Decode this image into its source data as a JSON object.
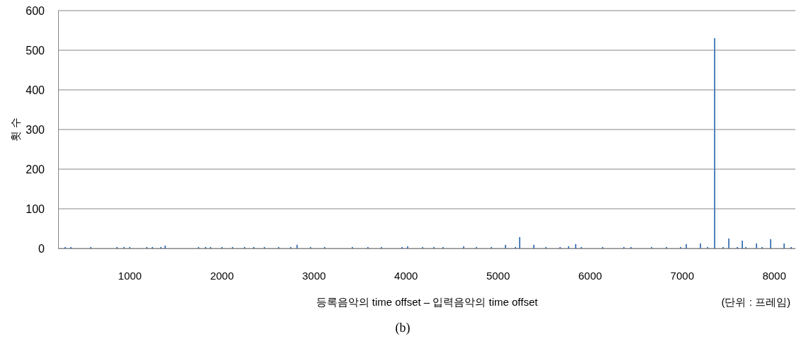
{
  "chart_data": {
    "type": "bar",
    "xlabel": "등록음악의 time offset – 입력음악의 time offset",
    "ylabel": "횟 수",
    "annotations": [
      "(단위 : 프레임)",
      "(b)"
    ],
    "x": [
      299,
      361,
      576,
      861,
      938,
      1000,
      1185,
      1246,
      1339,
      1385,
      1747,
      1824,
      1878,
      2001,
      2117,
      2248,
      2348,
      2463,
      2617,
      2748,
      2817,
      2964,
      3118,
      3418,
      3587,
      3734,
      3957,
      4019,
      4180,
      4303,
      4404,
      4627,
      4766,
      4927,
      5081,
      5189,
      5235,
      5389,
      5520,
      5674,
      5767,
      5844,
      5905,
      6136,
      6367,
      6444,
      6668,
      6830,
      6983,
      7045,
      7199,
      7276,
      7351,
      7445,
      7507,
      7599,
      7653,
      7692,
      7807,
      7869,
      7961,
      8108,
      8185
    ],
    "values": [
      3,
      3,
      3,
      3,
      4,
      3,
      3,
      4,
      3,
      7,
      3,
      3,
      3,
      3,
      4,
      3,
      3,
      3,
      4,
      3,
      9,
      4,
      3,
      3,
      3,
      4,
      4,
      5,
      4,
      3,
      3,
      5,
      3,
      4,
      9,
      4,
      28,
      9,
      3,
      3,
      6,
      11,
      3,
      3,
      3,
      3,
      3,
      3,
      4,
      10,
      12,
      4,
      530,
      4,
      25,
      3,
      19,
      3,
      12,
      4,
      23,
      13,
      3
    ],
    "color": "#4f81bd",
    "xlim": [
      220,
      8230
    ],
    "xticks": [
      1000,
      2000,
      3000,
      4000,
      5000,
      6000,
      7000,
      8000
    ],
    "ylim": [
      0,
      600
    ],
    "yticks": [
      0,
      100,
      200,
      300,
      400,
      500,
      600
    ],
    "grid": "y"
  }
}
